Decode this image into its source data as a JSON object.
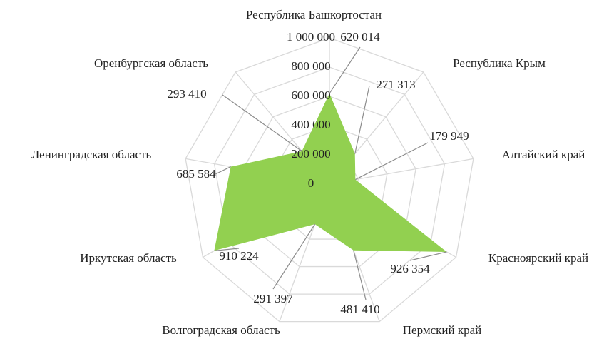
{
  "chart_data": {
    "type": "radar",
    "categories": [
      "Республика Башкортостан",
      "Республика Крым",
      "Алтайский край",
      "Красноярский край",
      "Пермский край",
      "Волгоградская область",
      "Иркутская область",
      "Ленинградская область",
      "Оренбургская область"
    ],
    "series": [
      {
        "color": "#92d050",
        "values": [
          620014,
          271313,
          179949,
          926354,
          481410,
          291397,
          910224,
          685584,
          293410
        ],
        "value_labels": [
          "620 014",
          "271 313",
          "179 949",
          "926 354",
          "481 410",
          "291 397",
          "910 224",
          "685 584",
          "293 410"
        ]
      }
    ],
    "ylim": [
      0,
      1000000
    ],
    "yticks": [
      0,
      {
        "value": 200000,
        "label": "200 000"
      },
      {
        "value": 400000,
        "label": "400 000"
      },
      {
        "value": 600000,
        "label": "600 000"
      },
      {
        "value": 800000,
        "label": "800 000"
      },
      {
        "value": 1000000,
        "label": "1 000 000"
      }
    ],
    "grid": true
  }
}
